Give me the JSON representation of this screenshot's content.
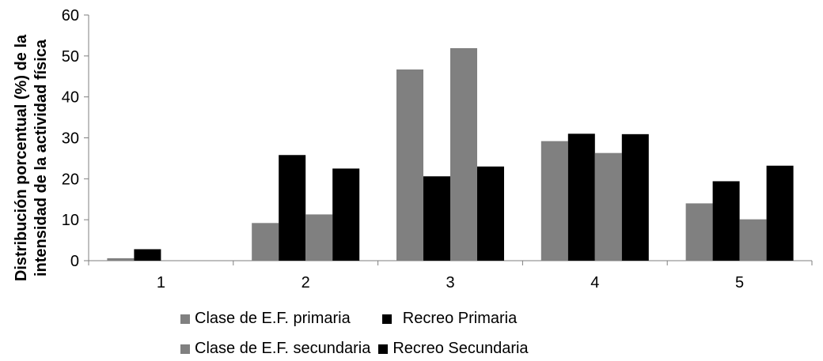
{
  "chart_data": {
    "type": "bar",
    "categories": [
      "1",
      "2",
      "3",
      "4",
      "5"
    ],
    "series": [
      {
        "name": "Clase de E.F. primaria",
        "color": "#808080",
        "values": [
          0.6,
          9.2,
          46.7,
          29.2,
          14.0
        ]
      },
      {
        "name": "Recreo Primaria",
        "color": "#000000",
        "values": [
          2.8,
          25.8,
          20.6,
          31.0,
          19.4
        ]
      },
      {
        "name": "Clase de E.F. secundaria",
        "color": "#808080",
        "values": [
          0,
          11.3,
          51.9,
          26.3,
          10.1
        ]
      },
      {
        "name": "Recreo Secundaria",
        "color": "#000000",
        "values": [
          0,
          22.5,
          23.0,
          30.9,
          23.2
        ]
      }
    ],
    "ylabel_line1": "Distribución porcentual (%) de la",
    "ylabel_line2": "intensidad de la actividad física",
    "ylim": [
      0,
      60
    ],
    "yticks": [
      "0",
      "10",
      "20",
      "30",
      "40",
      "50",
      "60"
    ],
    "grid": false,
    "legend_position": "bottom"
  }
}
